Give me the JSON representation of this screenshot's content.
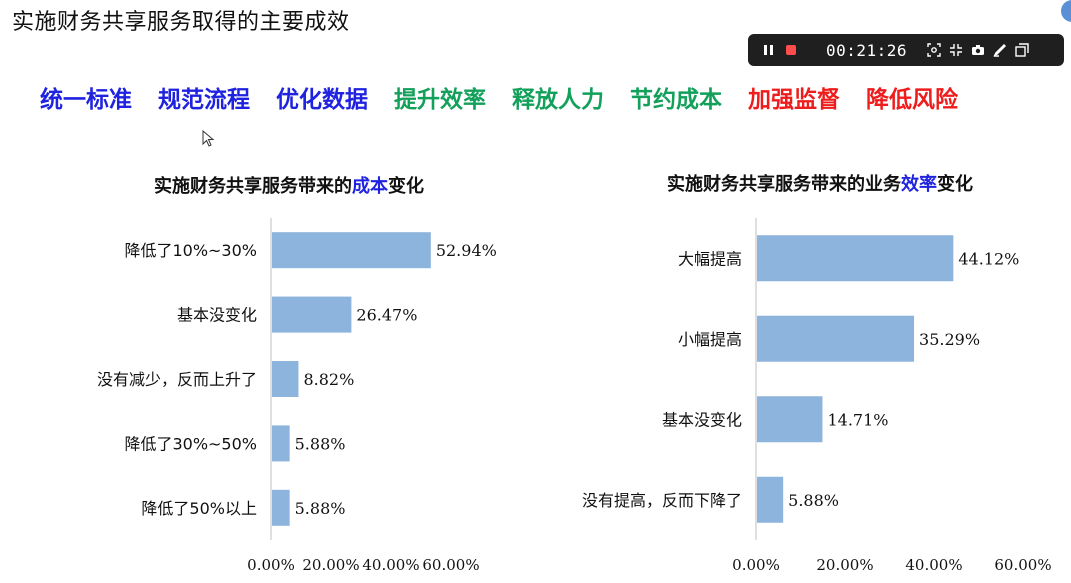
{
  "slide": {
    "title": "实施财务共享服务取得的主要成效",
    "keywords": [
      {
        "text": "统一标准",
        "color": "#1f23e0"
      },
      {
        "text": "规范流程",
        "color": "#1f23e0"
      },
      {
        "text": "优化数据",
        "color": "#1f23e0"
      },
      {
        "text": "提升效率",
        "color": "#12a05a"
      },
      {
        "text": "释放人力",
        "color": "#12a05a"
      },
      {
        "text": "节约成本",
        "color": "#12a05a"
      },
      {
        "text": "加强监督",
        "color": "#ee1c1c"
      },
      {
        "text": "降低风险",
        "color": "#ee1c1c"
      }
    ]
  },
  "recorder": {
    "timer": "00:21:26",
    "icons": [
      "pause-icon",
      "stop-icon",
      "screenshot-region-icon",
      "collapse-icon",
      "camera-icon",
      "pen-icon",
      "window-icon"
    ],
    "stop_color": "#ff4d4d"
  },
  "colors": {
    "bar": "#8db4dc",
    "axis": "#bfbfbf"
  },
  "chart_data": [
    {
      "type": "bar",
      "orientation": "horizontal",
      "title_parts": [
        "实施财务共享服务带来的",
        "成本",
        "变化"
      ],
      "categories": [
        "降低了10%~30%",
        "基本没变化",
        "没有减少，反而上升了",
        "降低了30%~50%",
        "降低了50%以上"
      ],
      "values": [
        52.94,
        26.47,
        8.82,
        5.88,
        5.88
      ],
      "value_labels": [
        "52.94%",
        "26.47%",
        "8.82%",
        "5.88%",
        "5.88%"
      ],
      "ticks": [
        "0.00%",
        "20.00%",
        "40.00%",
        "60.00%"
      ],
      "xlim": [
        0,
        60
      ],
      "grid": false
    },
    {
      "type": "bar",
      "orientation": "horizontal",
      "title_parts": [
        "实施财务共享服务带来的业务",
        "效率",
        "变化"
      ],
      "categories": [
        "大幅提高",
        "小幅提高",
        "基本没变化",
        "没有提高，反而下降了"
      ],
      "values": [
        44.12,
        35.29,
        14.71,
        5.88
      ],
      "value_labels": [
        "44.12%",
        "35.29%",
        "14.71%",
        "5.88%"
      ],
      "ticks": [
        "0.00%",
        "20.00%",
        "40.00%",
        "60.00%"
      ],
      "xlim": [
        0,
        60
      ],
      "grid": false
    }
  ]
}
